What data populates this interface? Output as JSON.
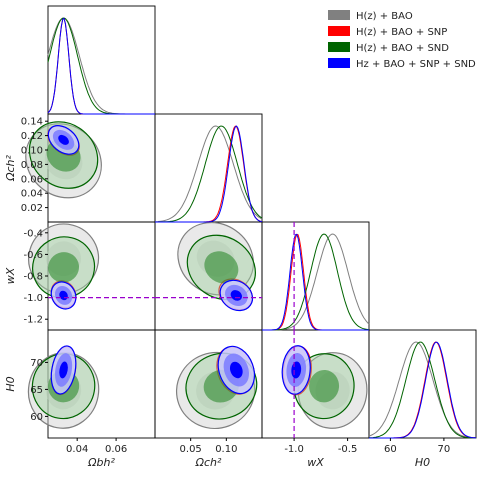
{
  "chart_data": {
    "type": "triangle-contour",
    "parameters": [
      {
        "name": "omega_b_h2",
        "label": "Ωbh²",
        "ticks": [
          "0.04",
          "0.06"
        ],
        "range": [
          0.025,
          0.08
        ]
      },
      {
        "name": "omega_c_h2",
        "label": "Ωch²",
        "ticks": [
          "0.02",
          "0.04",
          "0.06",
          "0.08",
          "0.10",
          "0.12",
          "0.14"
        ],
        "xticks": [
          "0.05",
          "0.10"
        ],
        "range": [
          0.0,
          0.15
        ]
      },
      {
        "name": "w_x",
        "label": "wX",
        "ticks": [
          "-1.2",
          "-1.0",
          "-0.8",
          "-0.6",
          "-0.4"
        ],
        "xticks": [
          "-1.0",
          "-0.5"
        ],
        "range": [
          -1.3,
          -0.3
        ]
      },
      {
        "name": "H0",
        "label": "H0",
        "ticks": [
          "60",
          "65",
          "70"
        ],
        "xticks": [
          "60",
          "70"
        ],
        "range": [
          56,
          76
        ]
      }
    ],
    "series": [
      {
        "name": "H(z) + BAO",
        "color": "#808080",
        "means": {
          "omega_b_h2": 0.033,
          "omega_c_h2": 0.085,
          "w_x": -0.64,
          "H0": 64.8
        }
      },
      {
        "name": "H(z) + BAO + SNP",
        "color": "#ff0000",
        "means": {
          "omega_b_h2": 0.033,
          "omega_c_h2": 0.113,
          "w_x": -0.97,
          "H0": 68.5
        }
      },
      {
        "name": "H(z) + BAO + SND",
        "color": "#006400",
        "means": {
          "omega_b_h2": 0.033,
          "omega_c_h2": 0.093,
          "w_x": -0.72,
          "H0": 65.6
        }
      },
      {
        "name": "Hz + BAO + SNP + SND",
        "color": "#0000ff",
        "means": {
          "omega_b_h2": 0.033,
          "omega_c_h2": 0.114,
          "w_x": -0.98,
          "H0": 68.6
        }
      }
    ],
    "reference_line": {
      "param": "w_x",
      "value": -1.0,
      "color": "#9900cc"
    },
    "legend_position": "top-right"
  }
}
